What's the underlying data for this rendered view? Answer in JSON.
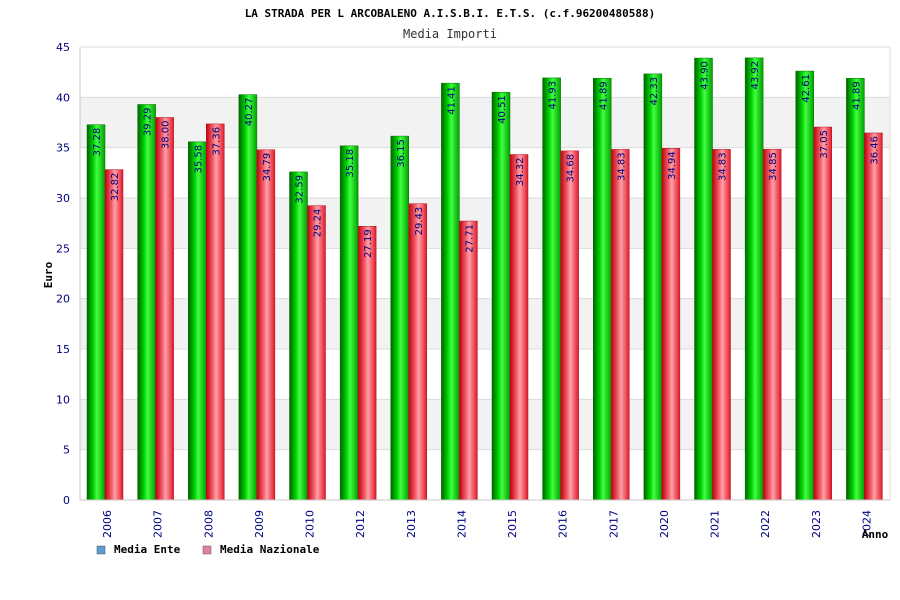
{
  "chart_data": {
    "type": "bar",
    "title": "LA STRADA PER L ARCOBALENO A.I.S.B.I. E.T.S. (c.f.96200480588)",
    "subtitle": "Media Importi",
    "xlabel": "Anno",
    "ylabel": "Euro",
    "ylim": [
      0,
      45
    ],
    "yticks": [
      0,
      5,
      10,
      15,
      20,
      25,
      30,
      35,
      40,
      45
    ],
    "categories": [
      "2006",
      "2007",
      "2008",
      "2009",
      "2010",
      "2012",
      "2013",
      "2014",
      "2015",
      "2016",
      "2017",
      "2020",
      "2021",
      "2022",
      "2023",
      "2024"
    ],
    "series": [
      {
        "name": "Media Ente",
        "legend_color": "#5b9bd5",
        "color": "#00b400",
        "values": [
          37.28,
          39.29,
          35.58,
          40.27,
          32.59,
          35.18,
          36.15,
          41.41,
          40.51,
          41.93,
          41.89,
          42.33,
          43.9,
          43.92,
          42.61,
          41.89
        ],
        "labels": [
          "37.28",
          "39.29",
          "35.58",
          "40.27",
          "32.59",
          "35.18",
          "36.15",
          "41.41",
          "40.51",
          "41.93",
          "41.89",
          "42.33",
          "43.90",
          "43.92",
          "42.61",
          "41.89"
        ]
      },
      {
        "name": "Media Nazionale",
        "legend_color": "#e37fa8",
        "color": "#e8323c",
        "values": [
          32.82,
          38.0,
          37.36,
          34.79,
          29.24,
          27.19,
          29.43,
          27.71,
          34.32,
          34.68,
          34.83,
          34.94,
          34.83,
          34.85,
          37.05,
          36.46
        ],
        "labels": [
          "32.82",
          "38.00",
          "37.36",
          "34.79",
          "29.24",
          "27.19",
          "29.43",
          "27.71",
          "34.32",
          "34.68",
          "34.83",
          "34.94",
          "34.83",
          "34.85",
          "37.05",
          "36.46"
        ]
      }
    ],
    "grid": true,
    "legend_position": "bottom-left"
  }
}
